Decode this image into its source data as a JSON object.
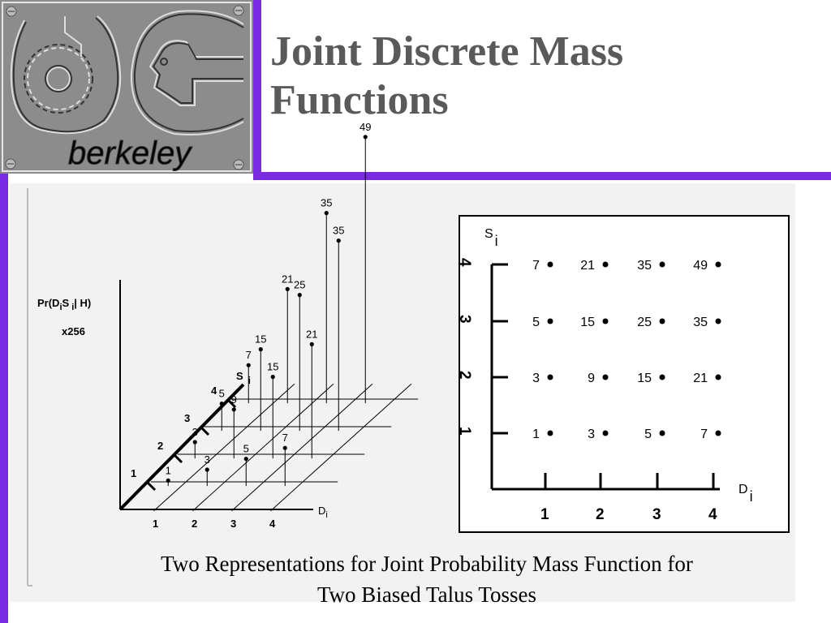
{
  "logo": {
    "text": "berkeley"
  },
  "slide": {
    "title_line1": "Joint Discrete Mass",
    "title_line2": "Functions",
    "caption_line1": "Two Representations for Joint Probability Mass Function for",
    "caption_line2": "Two Biased Talus Tosses"
  },
  "colors": {
    "accent": "#7a2ae0",
    "title": "#5a5a5a",
    "logo_bg": "#8c8c8c",
    "panel_bg": "#f2f2f2"
  },
  "chart_data": [
    {
      "type": "scatter",
      "variant": "3d-stem",
      "title": "",
      "ylabel_line1": "Pr(D",
      "ylabel_sub1": "i",
      "ylabel_mid": "S",
      "ylabel_sub2": "i",
      "ylabel_end": "| H)",
      "ylabel_line2": "x256",
      "xlabel": "D",
      "xlabel_sub": "i",
      "zlabel": "S",
      "zlabel_sub": "i",
      "x_ticks": [
        "1",
        "2",
        "3",
        "4"
      ],
      "z_ticks": [
        "1",
        "2",
        "3",
        "4"
      ],
      "points": [
        {
          "d": 1,
          "s": 1,
          "value": 1
        },
        {
          "d": 2,
          "s": 1,
          "value": 3
        },
        {
          "d": 3,
          "s": 1,
          "value": 5
        },
        {
          "d": 4,
          "s": 1,
          "value": 7
        },
        {
          "d": 1,
          "s": 2,
          "value": 3
        },
        {
          "d": 2,
          "s": 2,
          "value": 9
        },
        {
          "d": 3,
          "s": 2,
          "value": 15
        },
        {
          "d": 4,
          "s": 2,
          "value": 21
        },
        {
          "d": 1,
          "s": 3,
          "value": 5
        },
        {
          "d": 2,
          "s": 3,
          "value": 15
        },
        {
          "d": 3,
          "s": 3,
          "value": 25
        },
        {
          "d": 4,
          "s": 3,
          "value": 35
        },
        {
          "d": 1,
          "s": 4,
          "value": 7
        },
        {
          "d": 2,
          "s": 4,
          "value": 21
        },
        {
          "d": 3,
          "s": 4,
          "value": 35
        },
        {
          "d": 4,
          "s": 4,
          "value": 49
        }
      ]
    },
    {
      "type": "table",
      "xlabel": "D",
      "xlabel_sub": "i",
      "ylabel": "S",
      "ylabel_sub": "i",
      "x_ticks": [
        "1",
        "2",
        "3",
        "4"
      ],
      "y_ticks": [
        "1",
        "2",
        "3",
        "4"
      ],
      "rows": [
        {
          "s": 4,
          "values": [
            7,
            21,
            35,
            49
          ]
        },
        {
          "s": 3,
          "values": [
            5,
            15,
            25,
            35
          ]
        },
        {
          "s": 2,
          "values": [
            3,
            9,
            15,
            21
          ]
        },
        {
          "s": 1,
          "values": [
            1,
            3,
            5,
            7
          ]
        }
      ]
    }
  ]
}
